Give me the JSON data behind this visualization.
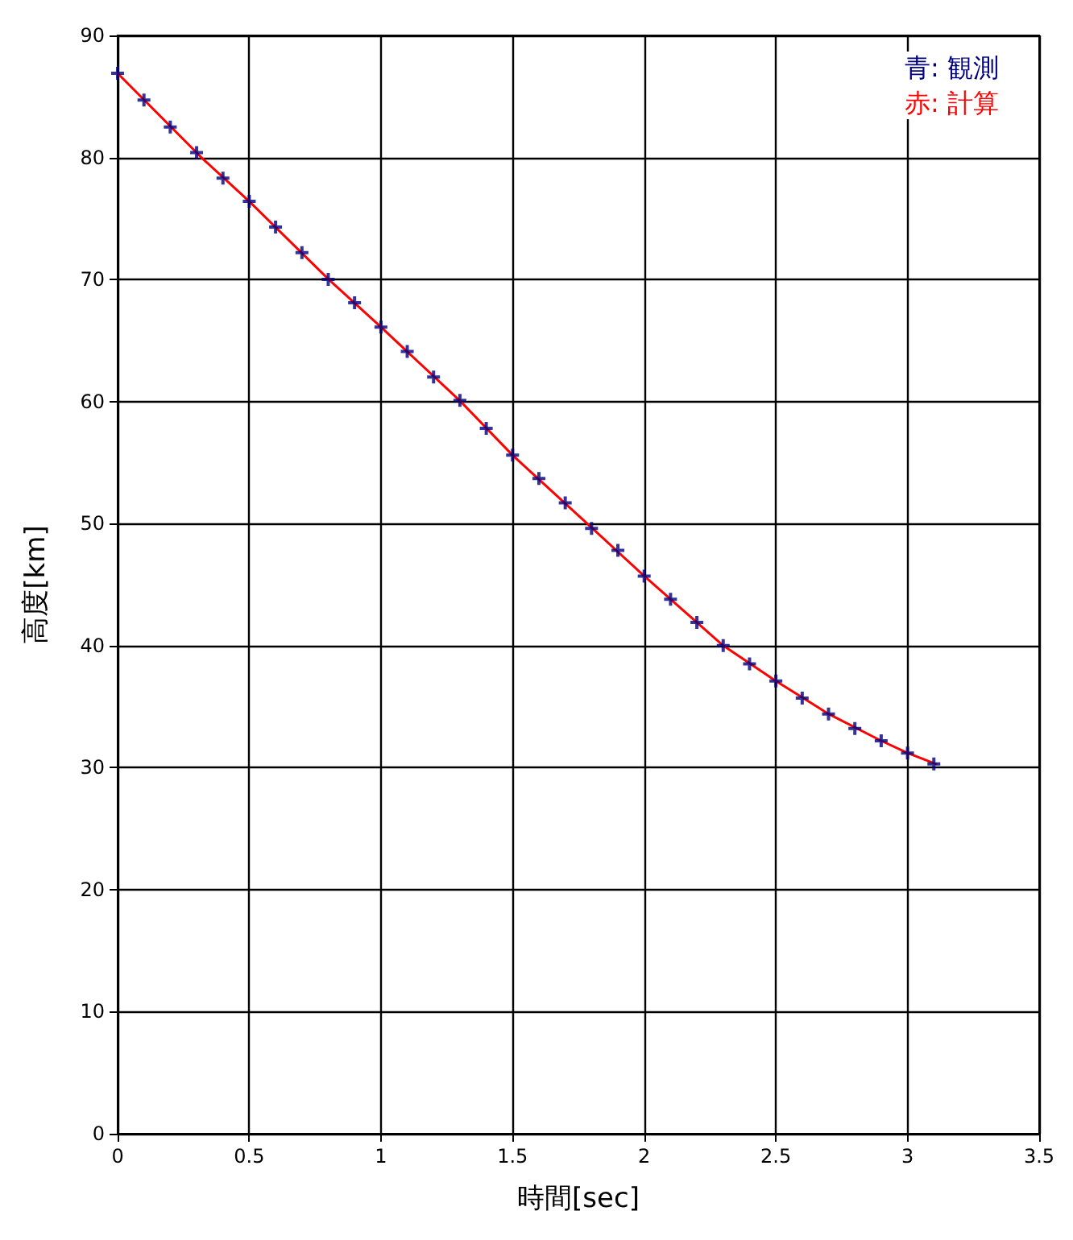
{
  "chart_data": {
    "type": "line",
    "xlabel": "時間[sec]",
    "ylabel": "高度[km]",
    "xlim": [
      0,
      3.5
    ],
    "xticks": [
      0,
      0.5,
      1,
      1.5,
      2,
      2.5,
      3,
      3.5
    ],
    "ylim": [
      0,
      90
    ],
    "yticks": [
      0,
      10,
      20,
      30,
      40,
      50,
      60,
      70,
      80,
      90
    ],
    "grid": true,
    "legend": "top right",
    "series": [
      {
        "name": "青: 観測",
        "type": "scatter",
        "marker": "cross",
        "color": "#000080",
        "x": [
          0,
          0.1,
          0.2,
          0.3,
          0.4,
          0.5,
          0.6,
          0.7,
          0.8,
          0.9,
          1.0,
          1.1,
          1.2,
          1.3,
          1.4,
          1.5,
          1.6,
          1.7,
          1.8,
          1.9,
          2.0,
          2.1,
          2.2,
          2.3,
          2.4,
          2.5,
          2.6,
          2.7,
          2.8,
          2.9,
          3.0,
          3.1
        ],
        "values": [
          86.9,
          84.7,
          82.5,
          80.4,
          78.3,
          76.4,
          74.3,
          72.2,
          70.0,
          68.1,
          66.1,
          64.1,
          62.0,
          60.1,
          57.8,
          55.6,
          53.7,
          51.7,
          49.6,
          47.8,
          45.7,
          43.8,
          41.9,
          40.0,
          38.5,
          37.1,
          35.7,
          34.4,
          33.2,
          32.2,
          31.2,
          30.3
        ]
      },
      {
        "name": "赤: 計算",
        "marker": "none",
        "color": "#ff0000",
        "x": [
          0,
          0.318,
          0.5,
          0.802,
          1.0,
          1.303,
          1.5,
          1.783,
          2.0,
          2.3,
          2.5,
          2.7,
          2.9,
          3.0,
          3.108
        ],
        "values": [
          86.9,
          80,
          76.4,
          70,
          66.1,
          60,
          55.6,
          50,
          45.7,
          40,
          37.1,
          34.4,
          32.2,
          31.2,
          30.3
        ]
      }
    ]
  }
}
